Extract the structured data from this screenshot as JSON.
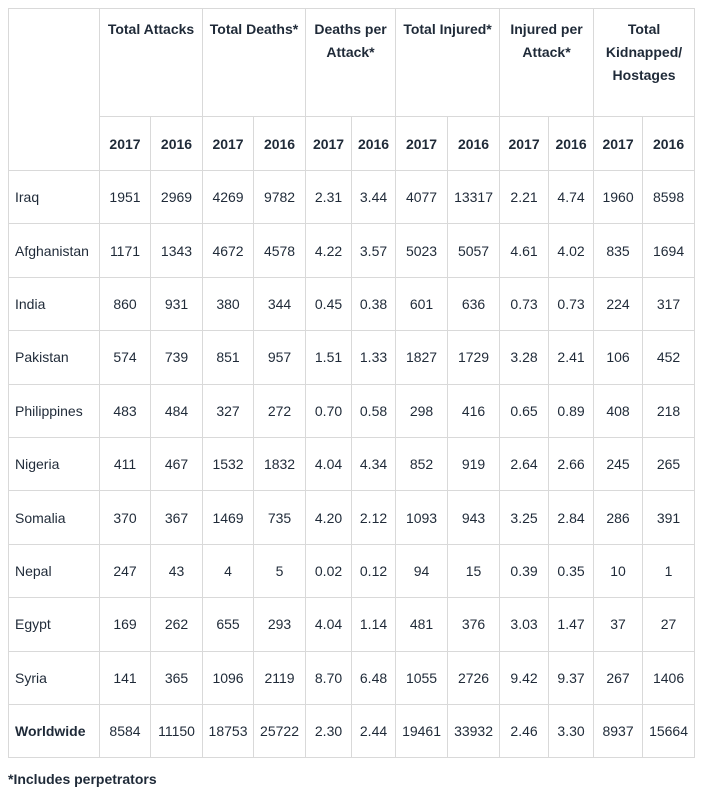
{
  "headers": {
    "groups": [
      "Total Attacks",
      "Total Deaths*",
      "Deaths per Attack*",
      "Total Injured*",
      "Injured per Attack*",
      "Total Kidnapped/ Hostages"
    ],
    "years": [
      "2017",
      "2016",
      "2017",
      "2016",
      "2017",
      "2016",
      "2017",
      "2016",
      "2017",
      "2016",
      "2017",
      "2016"
    ]
  },
  "rows": [
    {
      "country": "Iraq",
      "values": [
        "1951",
        "2969",
        "4269",
        "9782",
        "2.31",
        "3.44",
        "4077",
        "13317",
        "2.21",
        "4.74",
        "1960",
        "8598"
      ]
    },
    {
      "country": "Afghanistan",
      "values": [
        "1171",
        "1343",
        "4672",
        "4578",
        "4.22",
        "3.57",
        "5023",
        "5057",
        "4.61",
        "4.02",
        "835",
        "1694"
      ]
    },
    {
      "country": "India",
      "values": [
        "860",
        "931",
        "380",
        "344",
        "0.45",
        "0.38",
        "601",
        "636",
        "0.73",
        "0.73",
        "224",
        "317"
      ]
    },
    {
      "country": "Pakistan",
      "values": [
        "574",
        "739",
        "851",
        "957",
        "1.51",
        "1.33",
        "1827",
        "1729",
        "3.28",
        "2.41",
        "106",
        "452"
      ]
    },
    {
      "country": "Philippines",
      "values": [
        "483",
        "484",
        "327",
        "272",
        "0.70",
        "0.58",
        "298",
        "416",
        "0.65",
        "0.89",
        "408",
        "218"
      ]
    },
    {
      "country": "Nigeria",
      "values": [
        "411",
        "467",
        "1532",
        "1832",
        "4.04",
        "4.34",
        "852",
        "919",
        "2.64",
        "2.66",
        "245",
        "265"
      ]
    },
    {
      "country": "Somalia",
      "values": [
        "370",
        "367",
        "1469",
        "735",
        "4.20",
        "2.12",
        "1093",
        "943",
        "3.25",
        "2.84",
        "286",
        "391"
      ]
    },
    {
      "country": "Nepal",
      "values": [
        "247",
        "43",
        "4",
        "5",
        "0.02",
        "0.12",
        "94",
        "15",
        "0.39",
        "0.35",
        "10",
        "1"
      ]
    },
    {
      "country": "Egypt",
      "values": [
        "169",
        "262",
        "655",
        "293",
        "4.04",
        "1.14",
        "481",
        "376",
        "3.03",
        "1.47",
        "37",
        "27"
      ]
    },
    {
      "country": "Syria",
      "values": [
        "141",
        "365",
        "1096",
        "2119",
        "8.70",
        "6.48",
        "1055",
        "2726",
        "9.42",
        "9.37",
        "267",
        "1406"
      ]
    },
    {
      "country": "Worldwide",
      "values": [
        "8584",
        "11150",
        "18753",
        "25722",
        "2.30",
        "2.44",
        "19461",
        "33932",
        "2.46",
        "3.30",
        "8937",
        "15664"
      ]
    }
  ],
  "footnote": "*Includes perpetrators"
}
